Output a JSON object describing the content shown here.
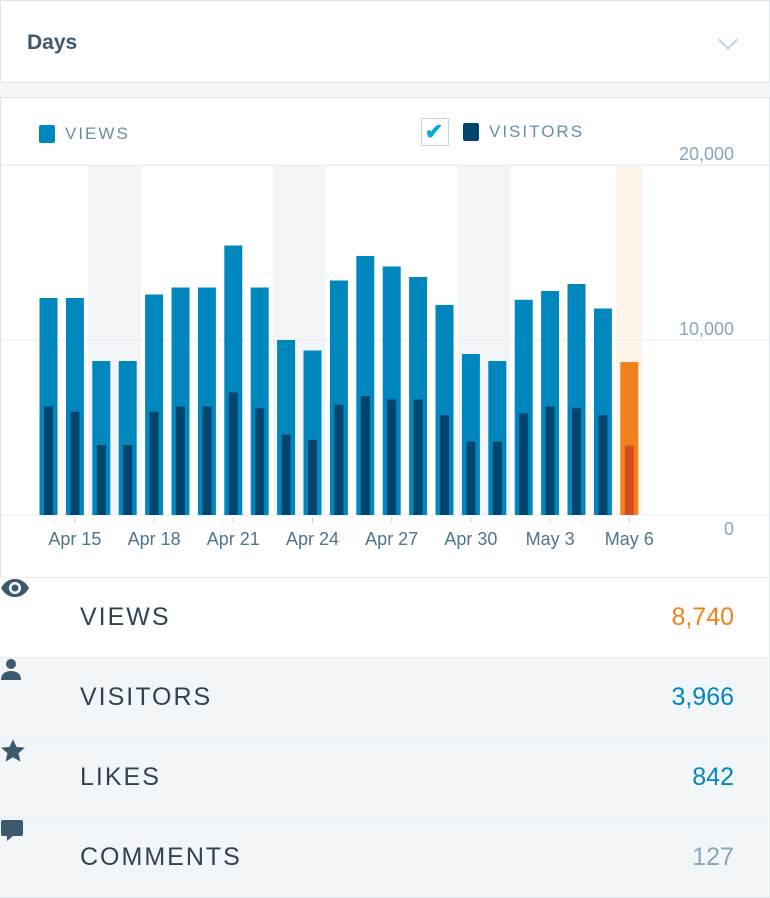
{
  "header": {
    "title": "Days"
  },
  "legend": {
    "views": "VIEWS",
    "visitors": "VISITORS",
    "visitors_checked": true
  },
  "colors": {
    "views": "#0087be",
    "visitors": "#00456e",
    "highlight_views": "#f0821e",
    "highlight_visitors": "#d54e21",
    "weekend": "#f3f6f8",
    "highlight_bg": "#fef4ea"
  },
  "chart_data": {
    "type": "bar",
    "categories": [
      "Apr 14",
      "Apr 15",
      "Apr 16",
      "Apr 17",
      "Apr 18",
      "Apr 19",
      "Apr 20",
      "Apr 21",
      "Apr 22",
      "Apr 23",
      "Apr 24",
      "Apr 25",
      "Apr 26",
      "Apr 27",
      "Apr 28",
      "Apr 29",
      "Apr 30",
      "May 1",
      "May 2",
      "May 3",
      "May 4",
      "May 5",
      "May 6"
    ],
    "series": [
      {
        "name": "VIEWS",
        "values": [
          12400,
          12400,
          8800,
          8800,
          12600,
          13000,
          13000,
          15400,
          13000,
          10000,
          9400,
          13400,
          14800,
          14200,
          13600,
          12000,
          9200,
          8800,
          12300,
          12800,
          13200,
          11800,
          8740
        ]
      },
      {
        "name": "VISITORS",
        "values": [
          6200,
          5900,
          4000,
          4000,
          5900,
          6200,
          6200,
          7000,
          6100,
          4600,
          4300,
          6300,
          6800,
          6600,
          6600,
          5700,
          4200,
          4200,
          5800,
          6200,
          6100,
          5700,
          3966
        ]
      }
    ],
    "x_tick_labels": [
      "Apr 15",
      "Apr 18",
      "Apr 21",
      "Apr 24",
      "Apr 27",
      "Apr 30",
      "May 3",
      "May 6"
    ],
    "y_tick_labels": [
      "0",
      "10,000",
      "20,000"
    ],
    "ylim": [
      0,
      20000
    ],
    "y_axis": "right",
    "grid": true,
    "weekend_shaded": [
      "Apr 16",
      "Apr 17",
      "Apr 23",
      "Apr 24",
      "Apr 30",
      "May 1"
    ],
    "highlighted": "May 6"
  },
  "stats": [
    {
      "icon": "eye-icon",
      "label": "VIEWS",
      "value": "8,740",
      "color": "#f0821e"
    },
    {
      "icon": "person-icon",
      "label": "VISITORS",
      "value": "3,966",
      "color": "#0087be"
    },
    {
      "icon": "star-icon",
      "label": "LIKES",
      "value": "842",
      "color": "#0087be"
    },
    {
      "icon": "comment-icon",
      "label": "COMMENTS",
      "value": "127",
      "color": "#87a6bc"
    }
  ]
}
